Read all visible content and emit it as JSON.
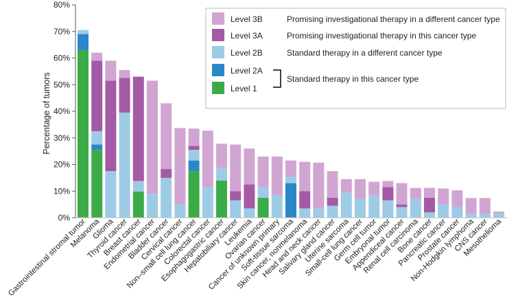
{
  "chart_data": {
    "type": "bar",
    "stacked": true,
    "title": "",
    "xlabel": "",
    "ylabel": "Percentage of tumors",
    "ylim": [
      0,
      80
    ],
    "yticks": [
      "0%",
      "10%",
      "20%",
      "30%",
      "40%",
      "50%",
      "60%",
      "70%",
      "80%"
    ],
    "grid": false,
    "legend_position": "top-right",
    "categories": [
      "Gastrointestinal stromal tumor",
      "Melanoma",
      "Glioma",
      "Thyroid cancer",
      "Breast cancer",
      "Endometrial cancer",
      "Bladder cancer",
      "Cervical cancer",
      "Non–small cell lung cancer",
      "Colorectal cancer",
      "Esophagogastric cancer",
      "Hepatobiliary cancer",
      "Leukemia",
      "Ovarian cancer",
      "Cancer of unknown primary",
      "Soft-tissue sarcoma",
      "Skin cancer, nonmelanoma",
      "Head and neck cancer",
      "Salivary gland cancer",
      "Uterine sarcoma",
      "Small-cell lung cancer",
      "Germ cell tumor",
      "Embryonal tumor",
      "Appendiceal cancer",
      "Renal cell carcinoma",
      "Bone cancer",
      "Pancreatic cancer",
      "Prostate cancer",
      "Non-Hodgkin lymphoma",
      "CNS cancer",
      "Mesothelioma"
    ],
    "series": [
      {
        "name": "Level 1",
        "color": "#3bab47",
        "values": [
          63,
          25.5,
          0,
          0,
          9.8,
          0,
          0,
          0,
          17.5,
          0,
          14,
          0,
          0,
          7.5,
          0,
          0,
          0,
          0,
          0,
          0,
          0,
          0,
          0,
          0,
          0,
          0,
          0,
          0,
          0,
          0,
          0
        ]
      },
      {
        "name": "Level 2A",
        "color": "#2a87c8",
        "values": [
          6,
          2,
          0,
          0,
          0,
          0,
          0,
          0,
          4,
          0,
          0,
          0,
          0,
          0,
          0,
          13,
          0,
          0,
          0,
          0,
          0,
          0,
          0,
          0,
          0,
          0,
          0,
          0,
          0,
          0,
          0
        ]
      },
      {
        "name": "Level 2B",
        "color": "#9dcbe6",
        "values": [
          1.5,
          5,
          17.5,
          39.5,
          4,
          9,
          15,
          5,
          4,
          11.5,
          4.8,
          6.5,
          3.5,
          4,
          8.5,
          2.5,
          3.5,
          3.5,
          4.5,
          9.5,
          7,
          8.5,
          6.5,
          4,
          7,
          2,
          5,
          4,
          1.5,
          1.5,
          1.5
        ]
      },
      {
        "name": "Level 3A",
        "color": "#a55aa5",
        "values": [
          0,
          26.5,
          34,
          13,
          39.2,
          0,
          3.3,
          0,
          1.5,
          0,
          0,
          3.5,
          9,
          0,
          0,
          0,
          6.5,
          0,
          3,
          0,
          0,
          0,
          5,
          1,
          0,
          5.5,
          0,
          0,
          0,
          0,
          0
        ]
      },
      {
        "name": "Level 3B",
        "color": "#d1a5d1",
        "values": [
          0,
          3,
          7.5,
          3,
          0,
          42.5,
          24.7,
          28.7,
          6.5,
          21.2,
          9,
          17.5,
          13.5,
          11.5,
          14.5,
          6,
          11,
          17.2,
          10,
          5,
          7.5,
          5,
          2.3,
          8,
          4.2,
          3.7,
          6,
          6.3,
          5.9,
          5.9,
          0.8
        ]
      }
    ]
  },
  "legend": [
    {
      "label": "Level 3B",
      "desc": "Promising investigational therapy in a different cancer type"
    },
    {
      "label": "Level 3A",
      "desc": "Promising investigational therapy in this cancer type"
    },
    {
      "label": "Level 2B",
      "desc": "Standard therapy in a different cancer type"
    },
    {
      "label": "Level 2A",
      "desc": ""
    },
    {
      "label": "Level 1",
      "desc": ""
    }
  ],
  "legend_group_desc": "Standard therapy in this cancer type"
}
